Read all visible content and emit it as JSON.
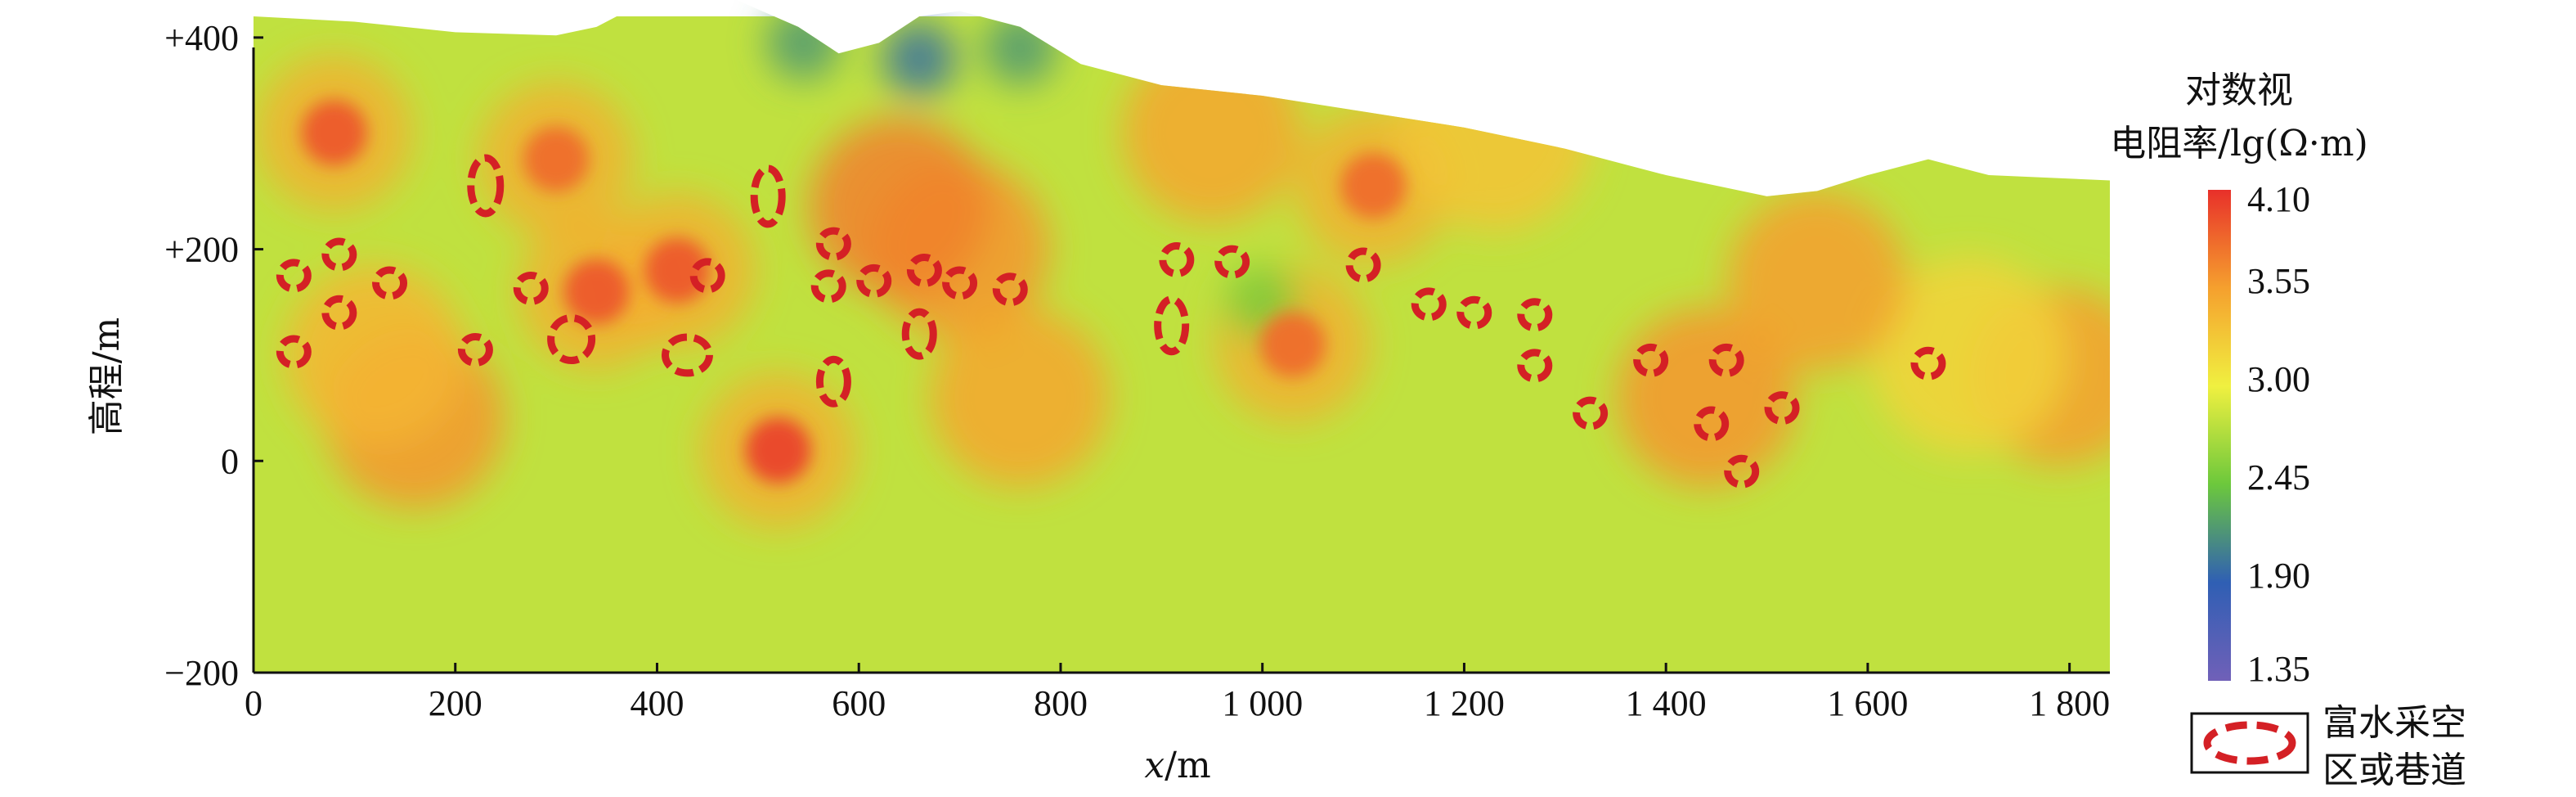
{
  "chart_data": {
    "type": "heatmap",
    "xlabel_var": "x",
    "xlabel_unit": "/m",
    "ylabel": "高程/m",
    "xlim": [
      0,
      1840
    ],
    "ylim": [
      -200,
      420
    ],
    "x_ticks": [
      0,
      200,
      400,
      600,
      800,
      1000,
      1200,
      1400,
      1600,
      1800
    ],
    "x_tick_labels": [
      "0",
      "200",
      "400",
      "600",
      "800",
      "1 000",
      "1 200",
      "1 400",
      "1 600",
      "1 800"
    ],
    "y_ticks": [
      -200,
      0,
      200,
      400
    ],
    "y_tick_labels": [
      "−200",
      "0",
      "+200",
      "+400"
    ],
    "colorbar": {
      "title_line1": "对数视",
      "title_line2": "电阻率/lg(Ω·m)",
      "ticks": [
        4.1,
        3.55,
        3.0,
        2.45,
        1.9,
        1.35
      ],
      "tick_labels": [
        "4.10",
        "3.55",
        "3.00",
        "2.45",
        "1.90",
        "1.35"
      ],
      "colors": [
        "#e8302a",
        "#f5a02e",
        "#f0f040",
        "#6cc83c",
        "#2f5fb4",
        "#7060b8"
      ]
    },
    "terrain_profile": [
      [
        0,
        420
      ],
      [
        100,
        415
      ],
      [
        200,
        405
      ],
      [
        300,
        402
      ],
      [
        340,
        410
      ],
      [
        380,
        430
      ],
      [
        430,
        440
      ],
      [
        480,
        435
      ],
      [
        540,
        410
      ],
      [
        580,
        385
      ],
      [
        620,
        395
      ],
      [
        660,
        420
      ],
      [
        700,
        425
      ],
      [
        760,
        410
      ],
      [
        820,
        375
      ],
      [
        900,
        355
      ],
      [
        1000,
        345
      ],
      [
        1100,
        330
      ],
      [
        1200,
        315
      ],
      [
        1300,
        295
      ],
      [
        1400,
        270
      ],
      [
        1500,
        250
      ],
      [
        1550,
        255
      ],
      [
        1600,
        270
      ],
      [
        1660,
        285
      ],
      [
        1720,
        270
      ],
      [
        1840,
        265
      ]
    ],
    "anomalies": [
      {
        "x": 420,
        "y": 180,
        "v": 3.9
      },
      {
        "x": 80,
        "y": 310,
        "v": 3.9
      },
      {
        "x": 340,
        "y": 160,
        "v": 3.9
      },
      {
        "x": 300,
        "y": 285,
        "v": 3.8
      },
      {
        "x": 160,
        "y": 40,
        "v": 3.6
      },
      {
        "x": 120,
        "y": 100,
        "v": 3.4
      },
      {
        "x": 700,
        "y": 200,
        "v": 3.6
      },
      {
        "x": 760,
        "y": 60,
        "v": 3.5
      },
      {
        "x": 950,
        "y": 310,
        "v": 3.5
      },
      {
        "x": 1110,
        "y": 260,
        "v": 3.8
      },
      {
        "x": 1230,
        "y": 310,
        "v": 3.3
      },
      {
        "x": 1790,
        "y": 80,
        "v": 3.55
      },
      {
        "x": 1700,
        "y": 100,
        "v": 3.2
      },
      {
        "x": 520,
        "y": 10,
        "v": 4.0
      },
      {
        "x": 1030,
        "y": 110,
        "v": 3.8
      },
      {
        "x": 1440,
        "y": 60,
        "v": 3.6
      },
      {
        "x": 1550,
        "y": 170,
        "v": 3.55
      },
      {
        "x": 640,
        "y": 240,
        "v": 3.7
      },
      {
        "x": 660,
        "y": 380,
        "v": 2.0
      },
      {
        "x": 760,
        "y": 390,
        "v": 2.2
      },
      {
        "x": 545,
        "y": 395,
        "v": 2.2
      },
      {
        "x": 1000,
        "y": 150,
        "v": 2.5
      }
    ],
    "legend_label_line1": "富水采空",
    "legend_label_line2": "区或巷道",
    "water_zones": [
      {
        "x": 40,
        "y": 175,
        "rx": 17,
        "ry": 16
      },
      {
        "x": 85,
        "y": 195,
        "rx": 17,
        "ry": 16
      },
      {
        "x": 85,
        "y": 140,
        "rx": 17,
        "ry": 17
      },
      {
        "x": 40,
        "y": 103,
        "rx": 17,
        "ry": 16
      },
      {
        "x": 135,
        "y": 168,
        "rx": 17,
        "ry": 16
      },
      {
        "x": 230,
        "y": 260,
        "rx": 18,
        "ry": 34
      },
      {
        "x": 220,
        "y": 105,
        "rx": 17,
        "ry": 16
      },
      {
        "x": 275,
        "y": 163,
        "rx": 17,
        "ry": 16
      },
      {
        "x": 315,
        "y": 115,
        "rx": 25,
        "ry": 26
      },
      {
        "x": 430,
        "y": 100,
        "rx": 27,
        "ry": 22
      },
      {
        "x": 450,
        "y": 175,
        "rx": 17,
        "ry": 17
      },
      {
        "x": 510,
        "y": 250,
        "rx": 17,
        "ry": 34
      },
      {
        "x": 575,
        "y": 205,
        "rx": 17,
        "ry": 16
      },
      {
        "x": 570,
        "y": 165,
        "rx": 17,
        "ry": 16
      },
      {
        "x": 615,
        "y": 170,
        "rx": 17,
        "ry": 16
      },
      {
        "x": 575,
        "y": 75,
        "rx": 17,
        "ry": 27
      },
      {
        "x": 660,
        "y": 120,
        "rx": 17,
        "ry": 27
      },
      {
        "x": 665,
        "y": 180,
        "rx": 17,
        "ry": 16
      },
      {
        "x": 700,
        "y": 168,
        "rx": 17,
        "ry": 16
      },
      {
        "x": 750,
        "y": 162,
        "rx": 17,
        "ry": 16
      },
      {
        "x": 915,
        "y": 190,
        "rx": 17,
        "ry": 17
      },
      {
        "x": 910,
        "y": 128,
        "rx": 17,
        "ry": 32
      },
      {
        "x": 970,
        "y": 188,
        "rx": 17,
        "ry": 16
      },
      {
        "x": 1100,
        "y": 185,
        "rx": 17,
        "ry": 17
      },
      {
        "x": 1165,
        "y": 148,
        "rx": 17,
        "ry": 16
      },
      {
        "x": 1210,
        "y": 140,
        "rx": 17,
        "ry": 16
      },
      {
        "x": 1270,
        "y": 138,
        "rx": 17,
        "ry": 16
      },
      {
        "x": 1270,
        "y": 90,
        "rx": 17,
        "ry": 16
      },
      {
        "x": 1325,
        "y": 45,
        "rx": 17,
        "ry": 16
      },
      {
        "x": 1385,
        "y": 95,
        "rx": 17,
        "ry": 16
      },
      {
        "x": 1460,
        "y": 95,
        "rx": 17,
        "ry": 16
      },
      {
        "x": 1445,
        "y": 35,
        "rx": 17,
        "ry": 17
      },
      {
        "x": 1475,
        "y": -10,
        "rx": 17,
        "ry": 16
      },
      {
        "x": 1515,
        "y": 50,
        "rx": 17,
        "ry": 16
      },
      {
        "x": 1660,
        "y": 92,
        "rx": 17,
        "ry": 16
      }
    ]
  }
}
